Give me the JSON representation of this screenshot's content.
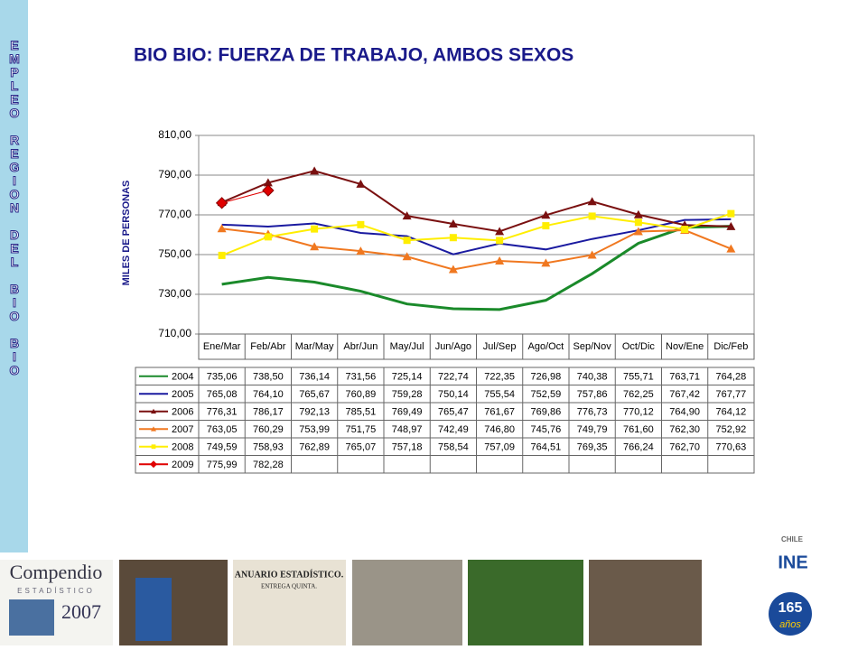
{
  "side_text": "EMPLEO REGION DEL BIO BIO",
  "chart_data": {
    "type": "line",
    "title": "BIO BIO: FUERZA DE TRABAJO, AMBOS SEXOS",
    "y_label": "MILES DE PERSONAS",
    "categories": [
      "Ene/Mar",
      "Feb/Abr",
      "Mar/May",
      "Abr/Jun",
      "May/Jul",
      "Jun/Ago",
      "Jul/Sep",
      "Ago/Oct",
      "Sep/Nov",
      "Oct/Dic",
      "Nov/Ene",
      "Dic/Feb"
    ],
    "ylim": [
      710,
      810
    ],
    "yticks": [
      {
        "value": 710,
        "label": "710,00"
      },
      {
        "value": 730,
        "label": "730,00"
      },
      {
        "value": 750,
        "label": "750,00"
      },
      {
        "value": 770,
        "label": "770,00"
      },
      {
        "value": 790,
        "label": "790,00"
      },
      {
        "value": 810,
        "label": "810,00"
      }
    ],
    "grid": true,
    "series": [
      {
        "name": "2004",
        "color": "#1a8a2a",
        "marker": "none",
        "width": 3,
        "values": [
          735.06,
          738.5,
          736.14,
          731.56,
          725.14,
          722.74,
          722.35,
          726.98,
          740.38,
          755.71,
          763.71,
          764.28
        ],
        "value_labels": [
          "735,06",
          "738,50",
          "736,14",
          "731,56",
          "725,14",
          "722,74",
          "722,35",
          "726,98",
          "740,38",
          "755,71",
          "763,71",
          "764,28"
        ]
      },
      {
        "name": "2005",
        "color": "#1a1aa0",
        "marker": "none",
        "width": 2,
        "values": [
          765.08,
          764.1,
          765.67,
          760.89,
          759.28,
          750.14,
          755.54,
          752.59,
          757.86,
          762.25,
          767.42,
          767.77
        ],
        "value_labels": [
          "765,08",
          "764,10",
          "765,67",
          "760,89",
          "759,28",
          "750,14",
          "755,54",
          "752,59",
          "757,86",
          "762,25",
          "767,42",
          "767,77"
        ]
      },
      {
        "name": "2006",
        "color": "#7a1010",
        "marker": "triangle",
        "width": 2,
        "values": [
          776.31,
          786.17,
          792.13,
          785.51,
          769.49,
          765.47,
          761.67,
          769.86,
          776.73,
          770.12,
          764.9,
          764.12
        ],
        "value_labels": [
          "776,31",
          "786,17",
          "792,13",
          "785,51",
          "769,49",
          "765,47",
          "761,67",
          "769,86",
          "776,73",
          "770,12",
          "764,90",
          "764,12"
        ]
      },
      {
        "name": "2007",
        "color": "#f07820",
        "marker": "triangle",
        "width": 2,
        "values": [
          763.05,
          760.29,
          753.99,
          751.75,
          748.97,
          742.49,
          746.8,
          745.76,
          749.79,
          761.6,
          762.3,
          752.92
        ],
        "value_labels": [
          "763,05",
          "760,29",
          "753,99",
          "751,75",
          "748,97",
          "742,49",
          "746,80",
          "745,76",
          "749,79",
          "761,60",
          "762,30",
          "752,92"
        ]
      },
      {
        "name": "2008",
        "color": "#ffee00",
        "marker": "square",
        "width": 2,
        "values": [
          749.59,
          758.93,
          762.89,
          765.07,
          757.18,
          758.54,
          757.09,
          764.51,
          769.35,
          766.24,
          762.7,
          770.63
        ],
        "value_labels": [
          "749,59",
          "758,93",
          "762,89",
          "765,07",
          "757,18",
          "758,54",
          "757,09",
          "764,51",
          "769,35",
          "766,24",
          "762,70",
          "770,63"
        ]
      },
      {
        "name": "2009",
        "color": "#e00000",
        "marker": "diamond",
        "width": 1,
        "values": [
          775.99,
          782.28,
          null,
          null,
          null,
          null,
          null,
          null,
          null,
          null,
          null,
          null
        ],
        "value_labels": [
          "775,99",
          "782,28",
          null,
          null,
          null,
          null,
          null,
          null,
          null,
          null,
          null,
          null
        ]
      }
    ]
  },
  "footer": {
    "compendio": "Compendio",
    "estadistico": "ESTADÍSTICO",
    "year": "2007",
    "anuario": "ANUARIO ESTADÍSTICO.",
    "entrega": "ENTREGA QUINTA.",
    "chile": "CHILE",
    "ine": "INE",
    "number": "165",
    "anos": "años"
  }
}
